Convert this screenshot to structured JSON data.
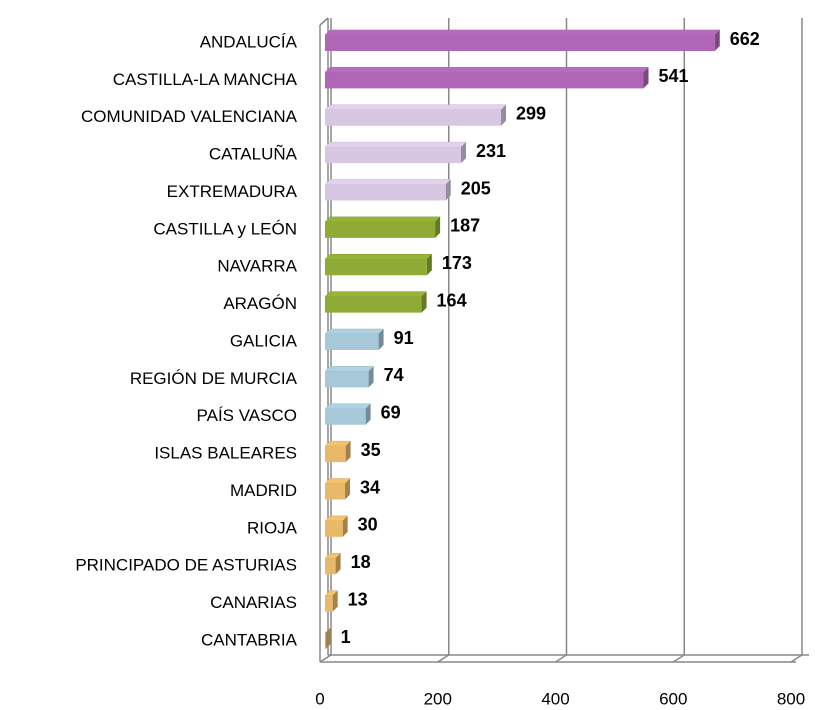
{
  "chart_data": {
    "type": "bar",
    "orientation": "horizontal",
    "categories": [
      "ANDALUCÍA",
      "CASTILLA-LA MANCHA",
      "COMUNIDAD VALENCIANA",
      "CATALUÑA",
      "EXTREMADURA",
      "CASTILLA y LEÓN",
      "NAVARRA",
      "ARAGÓN",
      "GALICIA",
      "REGIÓN DE MURCIA",
      "PAÍS VASCO",
      "ISLAS BALEARES",
      "MADRID",
      "RIOJA",
      "PRINCIPADO DE ASTURIAS",
      "CANARIAS",
      "CANTABRIA"
    ],
    "values": [
      662,
      541,
      299,
      231,
      205,
      187,
      173,
      164,
      91,
      74,
      69,
      35,
      34,
      30,
      18,
      13,
      1
    ],
    "colors": [
      "#b066b6",
      "#b066b6",
      "#d8c7e3",
      "#d8c7e3",
      "#d8c7e3",
      "#8fab35",
      "#8fab35",
      "#8fab35",
      "#a7c8d8",
      "#a7c8d8",
      "#a7c8d8",
      "#e9b96a",
      "#e9b96a",
      "#e9b96a",
      "#e9b96a",
      "#e9b96a",
      "#e9b96a"
    ],
    "xlim": [
      0,
      800
    ],
    "xticks": [
      0,
      200,
      400,
      600,
      800
    ],
    "grid": true
  }
}
